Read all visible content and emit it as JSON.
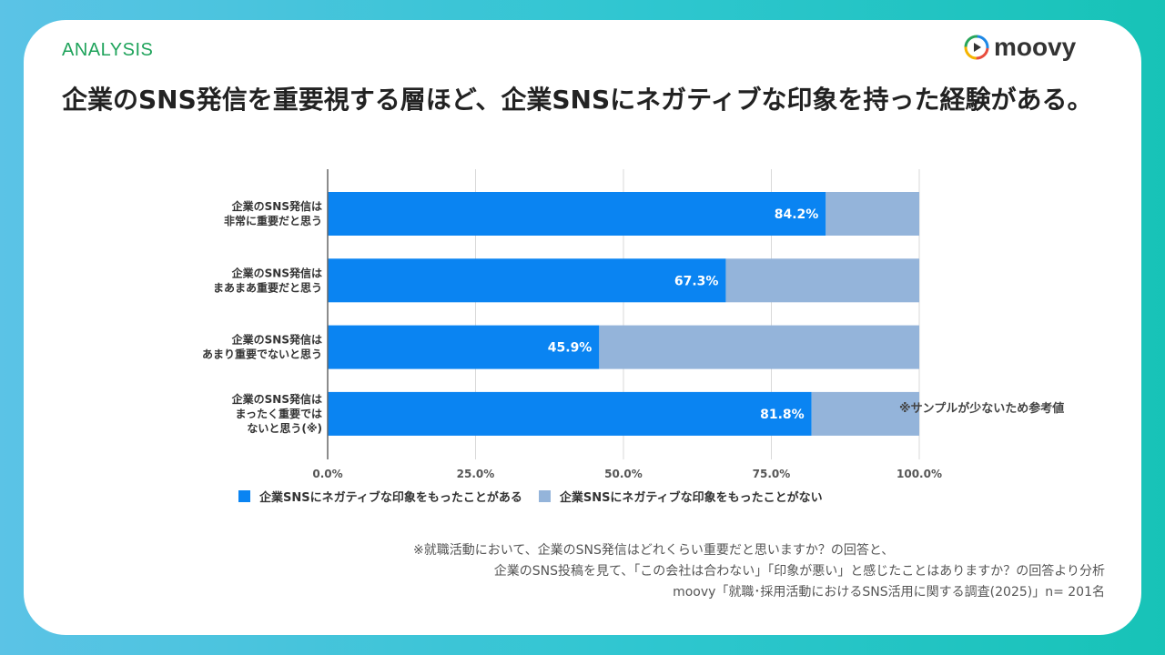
{
  "header": {
    "section_label": "ANALYSIS",
    "title": "企業のSNS発信を重要視する層ほど、企業SNSにネガティブな印象を持った経験がある。",
    "logo_text": "moovy"
  },
  "chart_data": {
    "type": "bar",
    "orientation": "horizontal",
    "stacked": true,
    "categories": [
      [
        "企業のSNS発信は",
        "非常に重要だと思う"
      ],
      [
        "企業のSNS発信は",
        "まあまあ重要だと思う"
      ],
      [
        "企業のSNS発信は",
        "あまり重要でないと思う"
      ],
      [
        "企業のSNS発信は",
        "まったく重要では",
        "ないと思う(※)"
      ]
    ],
    "series": [
      {
        "name": "企業SNSにネガティブな印象をもったことがある",
        "values": [
          84.2,
          67.3,
          45.9,
          81.8
        ],
        "color": "#0a84f2"
      },
      {
        "name": "企業SNSにネガティブな印象をもったことがない",
        "values": [
          15.8,
          32.7,
          54.1,
          18.2
        ],
        "color": "#94b4da"
      }
    ],
    "data_labels": [
      "84.2%",
      "67.3%",
      "45.9%",
      "81.8%"
    ],
    "x_ticks": [
      "0.0%",
      "25.0%",
      "50.0%",
      "75.0%",
      "100.0%"
    ],
    "xlim": [
      0,
      100
    ],
    "grid": true,
    "legend_position": "bottom"
  },
  "note": "※サンプルが少ないため参考値",
  "footnotes": [
    "※就職活動において、企業のSNS発信はどれくらい重要だと思いますか？の回答と、",
    "企業のSNS投稿を見て、「この会社は合わない」「印象が悪い」と感じたことはありますか？の回答より分析",
    "moovy「就職･採用活動におけるSNS活用に関する調査(2025)」n= 201名"
  ],
  "colors": {
    "accent_green": "#1fa35b",
    "bar_primary": "#0a84f2",
    "bar_secondary": "#94b4da"
  }
}
